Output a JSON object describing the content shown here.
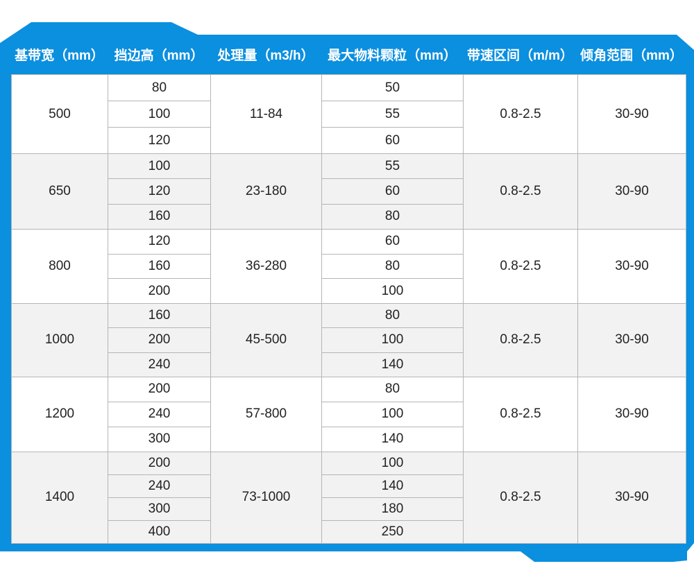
{
  "colors": {
    "frame": "#0b8fdf",
    "alt_row": "#f2f2f2",
    "border": "#b5b5b5"
  },
  "headers": [
    "基带宽（mm）",
    "挡边高（mm）",
    "处理量（m3/h）",
    "最大物料颗粒（mm）",
    "带速区间（m/m）",
    "倾角范围（mm）"
  ],
  "groups": [
    {
      "width": "500",
      "heights": [
        "80",
        "100",
        "120"
      ],
      "capacity": "11-84",
      "particles": [
        "50",
        "55",
        "60"
      ],
      "speed": "0.8-2.5",
      "angle": "30-90"
    },
    {
      "width": "650",
      "heights": [
        "100",
        "120",
        "160"
      ],
      "capacity": "23-180",
      "particles": [
        "55",
        "60",
        "80"
      ],
      "speed": "0.8-2.5",
      "angle": "30-90"
    },
    {
      "width": "800",
      "heights": [
        "120",
        "160",
        "200"
      ],
      "capacity": "36-280",
      "particles": [
        "60",
        "80",
        "100"
      ],
      "speed": "0.8-2.5",
      "angle": "30-90"
    },
    {
      "width": "1000",
      "heights": [
        "160",
        "200",
        "240"
      ],
      "capacity": "45-500",
      "particles": [
        "80",
        "100",
        "140"
      ],
      "speed": "0.8-2.5",
      "angle": "30-90"
    },
    {
      "width": "1200",
      "heights": [
        "200",
        "240",
        "300"
      ],
      "capacity": "57-800",
      "particles": [
        "80",
        "100",
        "140"
      ],
      "speed": "0.8-2.5",
      "angle": "30-90"
    },
    {
      "width": "1400",
      "heights": [
        "200",
        "240",
        "300",
        "400"
      ],
      "capacity": "73-1000",
      "particles": [
        "100",
        "140",
        "180",
        "250"
      ],
      "speed": "0.8-2.5",
      "angle": "30-90"
    }
  ]
}
